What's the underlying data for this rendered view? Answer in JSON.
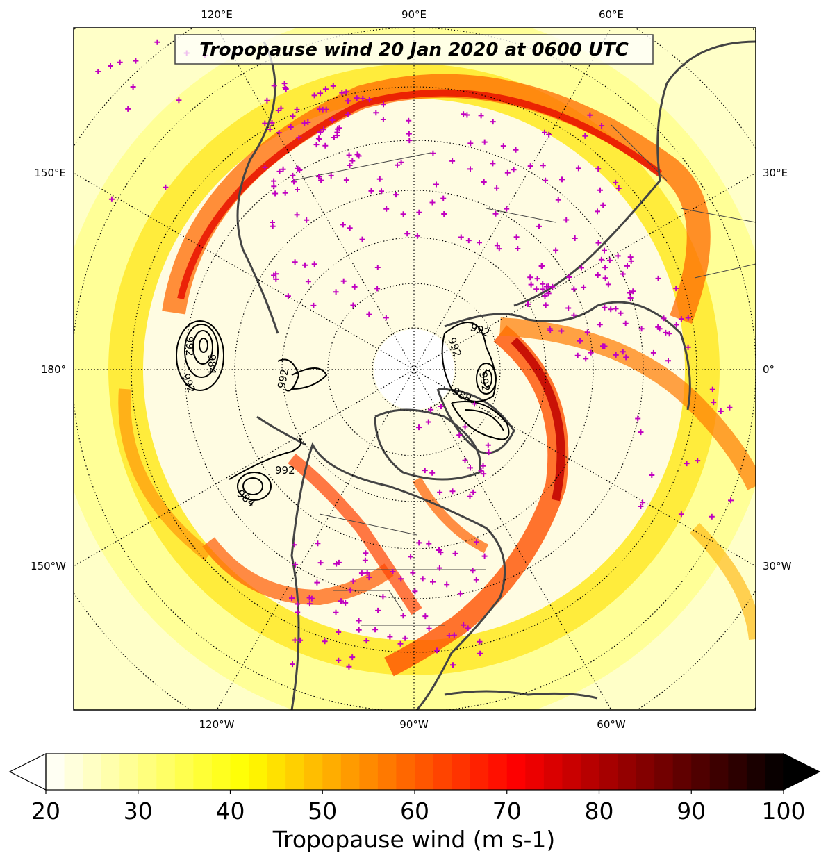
{
  "title": "Tropopause wind 20 Jan 2020 at 0600 UTC",
  "longitude_labels": {
    "top": [
      "120°E",
      "90°E",
      "60°E"
    ],
    "left": [
      "150°E",
      "180°",
      "150°W"
    ],
    "right": [
      "30°E",
      "0°",
      "30°W"
    ],
    "bottom": [
      "120°W",
      "90°W",
      "60°W"
    ]
  },
  "contour_labels": [
    "992",
    "992",
    "992",
    "992",
    "984",
    "992",
    "984",
    "992",
    "992",
    "988"
  ],
  "colorbar": {
    "label": "Tropopause wind (m s-1)",
    "min": 20,
    "max": 100,
    "step": 2,
    "ticks": [
      "20",
      "30",
      "40",
      "50",
      "60",
      "70",
      "80",
      "90",
      "100"
    ],
    "extend": "both",
    "colormap": "hot_r"
  },
  "colors": {
    "coastline": "#444444",
    "borders": "#444444",
    "station_marker": "#c000c0",
    "contour": "#000000"
  },
  "icons": {
    "station_marker": "plus-marker"
  }
}
